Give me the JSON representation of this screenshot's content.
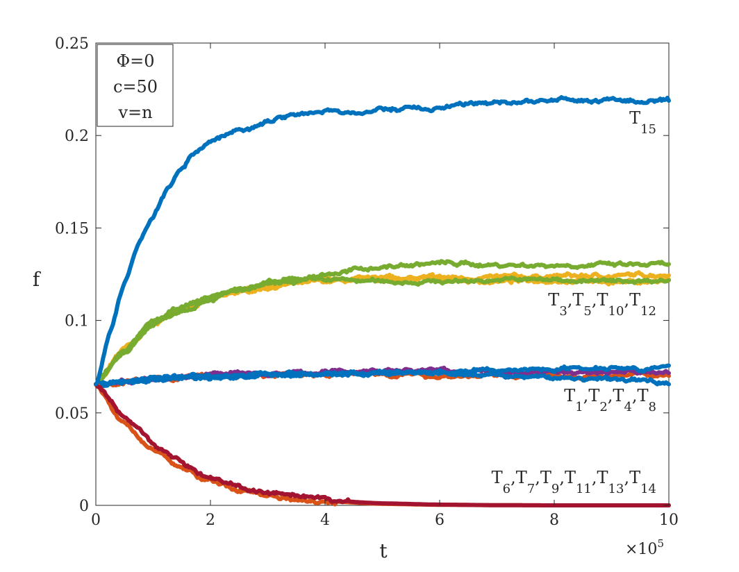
{
  "chart_data": {
    "type": "line",
    "xlabel": "t",
    "ylabel": "f",
    "x_exponent_label": "×10",
    "x_exponent_power": "5",
    "xlim": [
      0,
      10
    ],
    "ylim": [
      0,
      0.25
    ],
    "xticks": [
      0,
      2,
      4,
      6,
      8,
      10
    ],
    "xtick_labels": [
      "0",
      "2",
      "4",
      "6",
      "8",
      "10"
    ],
    "yticks": [
      0,
      0.05,
      0.1,
      0.15,
      0.2,
      0.25
    ],
    "ytick_labels": [
      "0",
      "0.05",
      "0.1",
      "0.15",
      "0.2",
      "0.25"
    ],
    "grid": false,
    "params_box": [
      "Φ=0",
      "c=50",
      "v=n"
    ],
    "annotations": [
      {
        "id": "T15",
        "parts": [
          [
            "T",
            "15"
          ]
        ]
      },
      {
        "id": "group-high",
        "parts": [
          [
            "T",
            "3"
          ],
          [
            "T",
            "5"
          ],
          [
            "T",
            "10"
          ],
          [
            "T",
            "12"
          ]
        ]
      },
      {
        "id": "group-mid",
        "parts": [
          [
            "T",
            "1"
          ],
          [
            "T",
            "2"
          ],
          [
            "T",
            "4"
          ],
          [
            "T",
            "8"
          ]
        ]
      },
      {
        "id": "group-low",
        "parts": [
          [
            "T",
            "6"
          ],
          [
            "T",
            "7"
          ],
          [
            "T",
            "9"
          ],
          [
            "T",
            "11"
          ],
          [
            "T",
            "13"
          ],
          [
            "T",
            "14"
          ]
        ]
      }
    ],
    "series": [
      {
        "key": "s-high-yellow-1",
        "color": "#EDB120",
        "x": [
          0,
          0.5,
          1,
          1.5,
          2,
          2.5,
          3,
          3.5,
          4,
          5,
          6,
          7,
          8,
          9,
          10
        ],
        "y": [
          0.0655,
          0.084,
          0.098,
          0.106,
          0.111,
          0.115,
          0.118,
          0.12,
          0.121,
          0.122,
          0.123,
          0.123,
          0.124,
          0.124,
          0.125
        ]
      },
      {
        "key": "s-high-yellow-2",
        "color": "#EDB120",
        "x": [
          0,
          0.5,
          1,
          1.5,
          2,
          2.5,
          3,
          3.5,
          4,
          5,
          6,
          7,
          8,
          9,
          10
        ],
        "y": [
          0.0655,
          0.085,
          0.099,
          0.107,
          0.112,
          0.116,
          0.119,
          0.121,
          0.122,
          0.123,
          0.122,
          0.121,
          0.122,
          0.121,
          0.121
        ]
      },
      {
        "key": "s-high-green-1",
        "color": "#77AC30",
        "x": [
          0,
          0.5,
          1,
          1.5,
          2,
          2.5,
          3,
          3.5,
          4,
          5,
          6,
          7,
          8,
          9,
          10
        ],
        "y": [
          0.0655,
          0.084,
          0.099,
          0.107,
          0.113,
          0.117,
          0.12,
          0.122,
          0.125,
          0.129,
          0.131,
          0.13,
          0.13,
          0.13,
          0.13
        ]
      },
      {
        "key": "s-high-green-2",
        "color": "#77AC30",
        "x": [
          0,
          0.5,
          1,
          1.5,
          2,
          2.5,
          3,
          3.5,
          4,
          5,
          6,
          7,
          8,
          9,
          10
        ],
        "y": [
          0.0655,
          0.083,
          0.098,
          0.106,
          0.112,
          0.116,
          0.119,
          0.121,
          0.122,
          0.121,
          0.121,
          0.122,
          0.122,
          0.121,
          0.122
        ]
      },
      {
        "key": "s-mid-orange",
        "color": "#D95319",
        "x": [
          0,
          1,
          2,
          3,
          4,
          5,
          6,
          7,
          8,
          9,
          10
        ],
        "y": [
          0.0655,
          0.068,
          0.07,
          0.07,
          0.071,
          0.071,
          0.07,
          0.07,
          0.07,
          0.07,
          0.071
        ]
      },
      {
        "key": "s-mid-purple",
        "color": "#7E2F8E",
        "x": [
          0,
          1,
          2,
          3,
          4,
          5,
          6,
          7,
          8,
          9,
          10
        ],
        "y": [
          0.0655,
          0.069,
          0.071,
          0.071,
          0.072,
          0.073,
          0.073,
          0.072,
          0.072,
          0.072,
          0.072
        ]
      },
      {
        "key": "s-mid-blue-1",
        "color": "#0072BD",
        "x": [
          0,
          1,
          2,
          3,
          4,
          5,
          6,
          7,
          8,
          9,
          10
        ],
        "y": [
          0.0655,
          0.069,
          0.07,
          0.071,
          0.071,
          0.071,
          0.071,
          0.07,
          0.069,
          0.068,
          0.067
        ]
      },
      {
        "key": "s-mid-blue-2",
        "color": "#0072BD",
        "x": [
          0,
          1,
          2,
          3,
          4,
          5,
          6,
          7,
          8,
          9,
          10
        ],
        "y": [
          0.0655,
          0.068,
          0.069,
          0.07,
          0.071,
          0.072,
          0.072,
          0.073,
          0.074,
          0.075,
          0.074
        ]
      },
      {
        "key": "s-low-orange",
        "color": "#D95319",
        "x": [
          0,
          0.5,
          1,
          1.5,
          2,
          2.5,
          3,
          3.5,
          4,
          5,
          6,
          7,
          8,
          9,
          10
        ],
        "y": [
          0.0655,
          0.044,
          0.03,
          0.02,
          0.013,
          0.0085,
          0.0055,
          0.0035,
          0.0022,
          0.0008,
          0.0003,
          0.0001,
          0,
          0,
          0
        ]
      },
      {
        "key": "s-low-darkred",
        "color": "#A2142F",
        "x": [
          0,
          0.5,
          1,
          1.5,
          2,
          2.5,
          3,
          3.5,
          4,
          5,
          6,
          7,
          8,
          9,
          10
        ],
        "y": [
          0.0655,
          0.048,
          0.034,
          0.023,
          0.015,
          0.01,
          0.0065,
          0.0042,
          0.0027,
          0.0011,
          0.0004,
          0.0001,
          0,
          0,
          0
        ]
      },
      {
        "key": "s-T15",
        "color": "#0072BD",
        "x": [
          0,
          0.25,
          0.5,
          0.75,
          1,
          1.25,
          1.5,
          1.75,
          2,
          2.5,
          3,
          3.5,
          4,
          4.5,
          5,
          6,
          7,
          8,
          9,
          10
        ],
        "y": [
          0.0655,
          0.095,
          0.12,
          0.142,
          0.157,
          0.171,
          0.182,
          0.192,
          0.197,
          0.203,
          0.208,
          0.212,
          0.213,
          0.212,
          0.214,
          0.215,
          0.218,
          0.219,
          0.219,
          0.218
        ]
      }
    ]
  }
}
